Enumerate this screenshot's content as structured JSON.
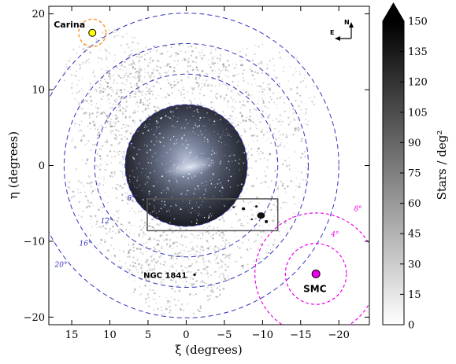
{
  "chart_data": {
    "type": "map",
    "xlabel": "ξ (degrees)",
    "ylabel": "η (degrees)",
    "xlim": [
      18,
      -24
    ],
    "ylim": [
      -21,
      21
    ],
    "x_ticks": [
      15,
      10,
      5,
      0,
      -5,
      -10,
      -15,
      -20
    ],
    "x_tick_labels": [
      "15",
      "10",
      "5",
      "0",
      "−5",
      "−10",
      "−15",
      "−20"
    ],
    "y_ticks": [
      20,
      10,
      0,
      -10,
      -20
    ],
    "y_tick_labels": [
      "20",
      "10",
      "0",
      "−10",
      "−20"
    ],
    "lmc_image": {
      "center": [
        0,
        0
      ],
      "radius_deg": 8
    },
    "lmc_rings": [
      {
        "radius_deg": 8,
        "label": "8°",
        "label_at": [
          7.2,
          -4.6
        ]
      },
      {
        "radius_deg": 12,
        "label": "12°",
        "label_at": [
          10.4,
          -7.6
        ]
      },
      {
        "radius_deg": 16,
        "label": "16°",
        "label_at": [
          13.2,
          -10.6
        ]
      },
      {
        "radius_deg": 20,
        "label": "20°",
        "label_at": [
          16.4,
          -13.4
        ]
      }
    ],
    "lmc_ring_color": "#3333bb",
    "smc": {
      "label": "SMC",
      "center": [
        -17,
        -14.3
      ],
      "color": "#ee00ee",
      "rings": [
        {
          "radius_deg": 4,
          "label": "4°",
          "label_at": [
            -19.5,
            -9.4
          ]
        },
        {
          "radius_deg": 8,
          "label": "8°",
          "label_at": [
            -22.5,
            -6.0
          ]
        }
      ]
    },
    "carina": {
      "label": "Carina",
      "center": [
        12.3,
        17.5
      ],
      "ring_radius_deg": 1.8,
      "marker_color": "#ffff00",
      "ring_color": "#ff9933"
    },
    "ngc1841": {
      "label": "NGC 1841",
      "at": [
        -1.1,
        -14.4
      ]
    },
    "inset_box": {
      "x_range": [
        5.1,
        -12.0
      ],
      "y_range": [
        -4.4,
        -8.6
      ]
    },
    "compass": {
      "north": "N",
      "east": "E"
    },
    "colorbar": {
      "label": "Stars / deg²",
      "min": 0,
      "max": 150,
      "extend": "max",
      "ticks": [
        0,
        15,
        30,
        45,
        60,
        75,
        90,
        105,
        120,
        135,
        150
      ]
    }
  }
}
